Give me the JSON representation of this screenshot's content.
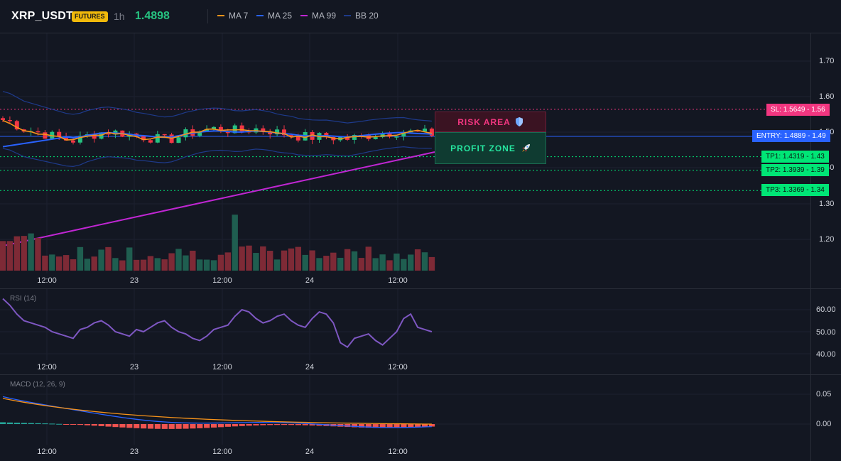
{
  "header": {
    "symbol": "XRP_USDT",
    "badge": "FUTURES",
    "timeframe": "1h",
    "last_price": "1.4898",
    "legend": [
      {
        "label": "MA 7",
        "color": "#f7931a"
      },
      {
        "label": "MA 25",
        "color": "#2962ff"
      },
      {
        "label": "MA 99",
        "color": "#c026d3"
      },
      {
        "label": "BB 20",
        "color": "#1e3a8a"
      }
    ]
  },
  "price_axis": [
    "1.70",
    "1.60",
    "1.50",
    "1.40",
    "1.30",
    "1.20"
  ],
  "time_axis": [
    "12:00",
    "23",
    "12:00",
    "24",
    "12:00"
  ],
  "levels": {
    "sl": {
      "label": "SL: 1.5649 - 1.56",
      "price": 1.5649,
      "color": "#f23680"
    },
    "entry": {
      "label": "ENTRY: 1.4889 - 1.49",
      "price": 1.4889,
      "color": "#2962ff"
    },
    "tp1": {
      "label": "TP1: 1.4319 - 1.43",
      "price": 1.4319,
      "color": "#00e676"
    },
    "tp2": {
      "label": "TP2: 1.3939 - 1.39",
      "price": 1.3939,
      "color": "#00e676"
    },
    "tp3": {
      "label": "TP3: 1.3369 - 1.34",
      "price": 1.3369,
      "color": "#00e676"
    }
  },
  "zones": {
    "risk": {
      "label": "RISK AREA",
      "icon": "shield-icon"
    },
    "profit": {
      "label": "PROFIT ZONE",
      "icon": "rocket-icon"
    }
  },
  "rsi": {
    "label": "RSI (14)",
    "axis": [
      "60.00",
      "50.00",
      "40.00"
    ]
  },
  "macd": {
    "label": "MACD (12, 26, 9)",
    "axis": [
      "0.05",
      "0.00"
    ]
  },
  "colors": {
    "up": "#26c281",
    "down": "#f23645",
    "bg": "#131722",
    "grid": "#1e222d",
    "rsi": "#7e57c2"
  }
}
